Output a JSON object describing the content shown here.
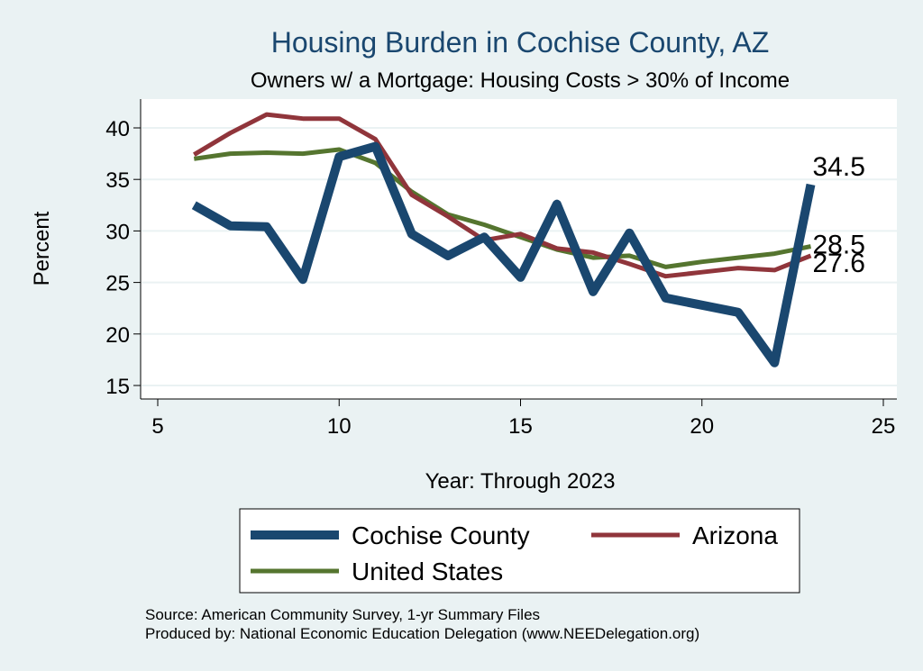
{
  "chart_data": {
    "type": "line",
    "title": "Housing Burden in Cochise County, AZ",
    "subtitle": "Owners w/ a Mortgage: Housing Costs > 30% of Income",
    "xlabel": "Year: Through 2023",
    "ylabel": "Percent",
    "xlim": [
      5,
      25
    ],
    "ylim": [
      14,
      43
    ],
    "xticks": [
      5,
      10,
      15,
      20,
      25
    ],
    "yticks": [
      15,
      20,
      25,
      30,
      35,
      40
    ],
    "grid": true,
    "legend_position": "bottom",
    "series": [
      {
        "name": "Cochise County",
        "color": "#1a476f",
        "x": [
          6,
          7,
          8,
          9,
          10,
          11,
          12,
          13,
          14,
          15,
          16,
          17,
          18,
          19,
          20,
          21,
          22,
          23
        ],
        "values": [
          32.5,
          30.5,
          30.4,
          25.3,
          37.2,
          38.2,
          29.7,
          27.6,
          29.4,
          25.5,
          32.6,
          24.1,
          29.8,
          23.5,
          22.8,
          22.1,
          17.2,
          34.5
        ],
        "end_label": "34.5"
      },
      {
        "name": "Arizona",
        "color": "#90353b",
        "x": [
          6,
          7,
          8,
          9,
          10,
          11,
          12,
          13,
          14,
          15,
          16,
          17,
          18,
          19,
          20,
          21,
          22,
          23
        ],
        "values": [
          37.4,
          39.5,
          41.3,
          40.9,
          40.9,
          38.9,
          33.5,
          31.4,
          29.1,
          29.7,
          28.3,
          27.9,
          26.8,
          25.6,
          26.0,
          26.4,
          26.2,
          27.6
        ],
        "end_label": "27.6"
      },
      {
        "name": "United States",
        "color": "#55752f",
        "x": [
          6,
          7,
          8,
          9,
          10,
          11,
          12,
          13,
          14,
          15,
          16,
          17,
          18,
          19,
          20,
          21,
          22,
          23
        ],
        "values": [
          37.0,
          37.5,
          37.6,
          37.5,
          37.9,
          36.6,
          33.8,
          31.6,
          30.6,
          29.4,
          28.2,
          27.4,
          27.6,
          26.5,
          27.0,
          27.4,
          27.8,
          28.5
        ],
        "end_label": "28.5"
      }
    ]
  },
  "footer": {
    "source": "Source: American Community Survey, 1-yr Summary Files",
    "produced": "Produced by: National Economic Education Delegation (www.NEEDelegation.org)"
  }
}
